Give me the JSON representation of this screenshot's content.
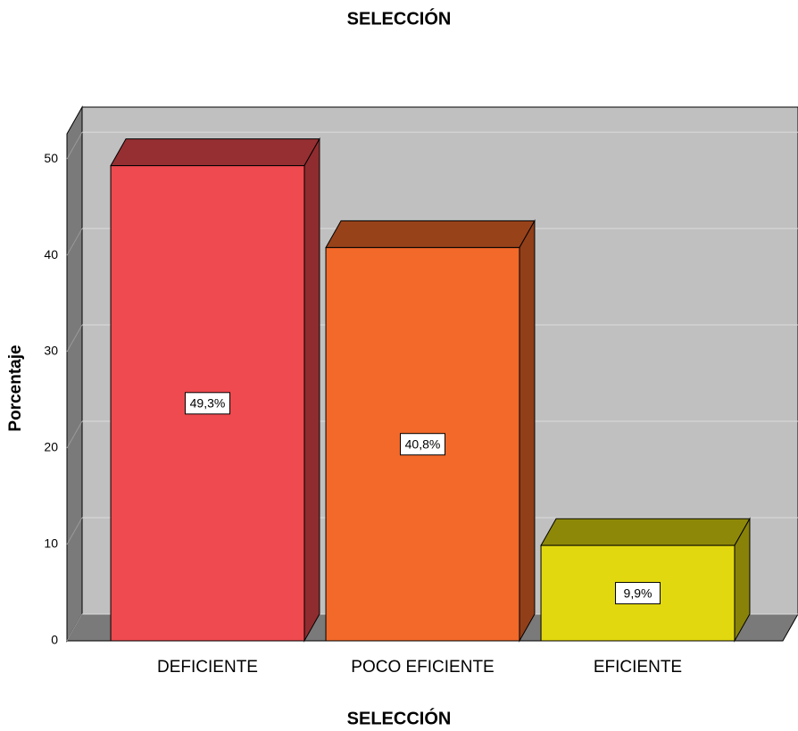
{
  "chart_data": {
    "type": "bar3d",
    "title": "SELECCIÓN",
    "xlabel": "SELECCIÓN",
    "ylabel": "Porcentaje",
    "categories": [
      "DEFICIENTE",
      "POCO EFICIENTE",
      "EFICIENTE"
    ],
    "values": [
      49.3,
      40.8,
      9.9
    ],
    "value_labels": [
      "49,3%",
      "40,8%",
      "9,9%"
    ],
    "colors": [
      "#ee4a4f",
      "#f2692a",
      "#e2d80f"
    ],
    "ylim": [
      0,
      52.6
    ],
    "yticks": [
      0,
      10,
      20,
      30,
      40,
      50
    ],
    "grid": true
  }
}
